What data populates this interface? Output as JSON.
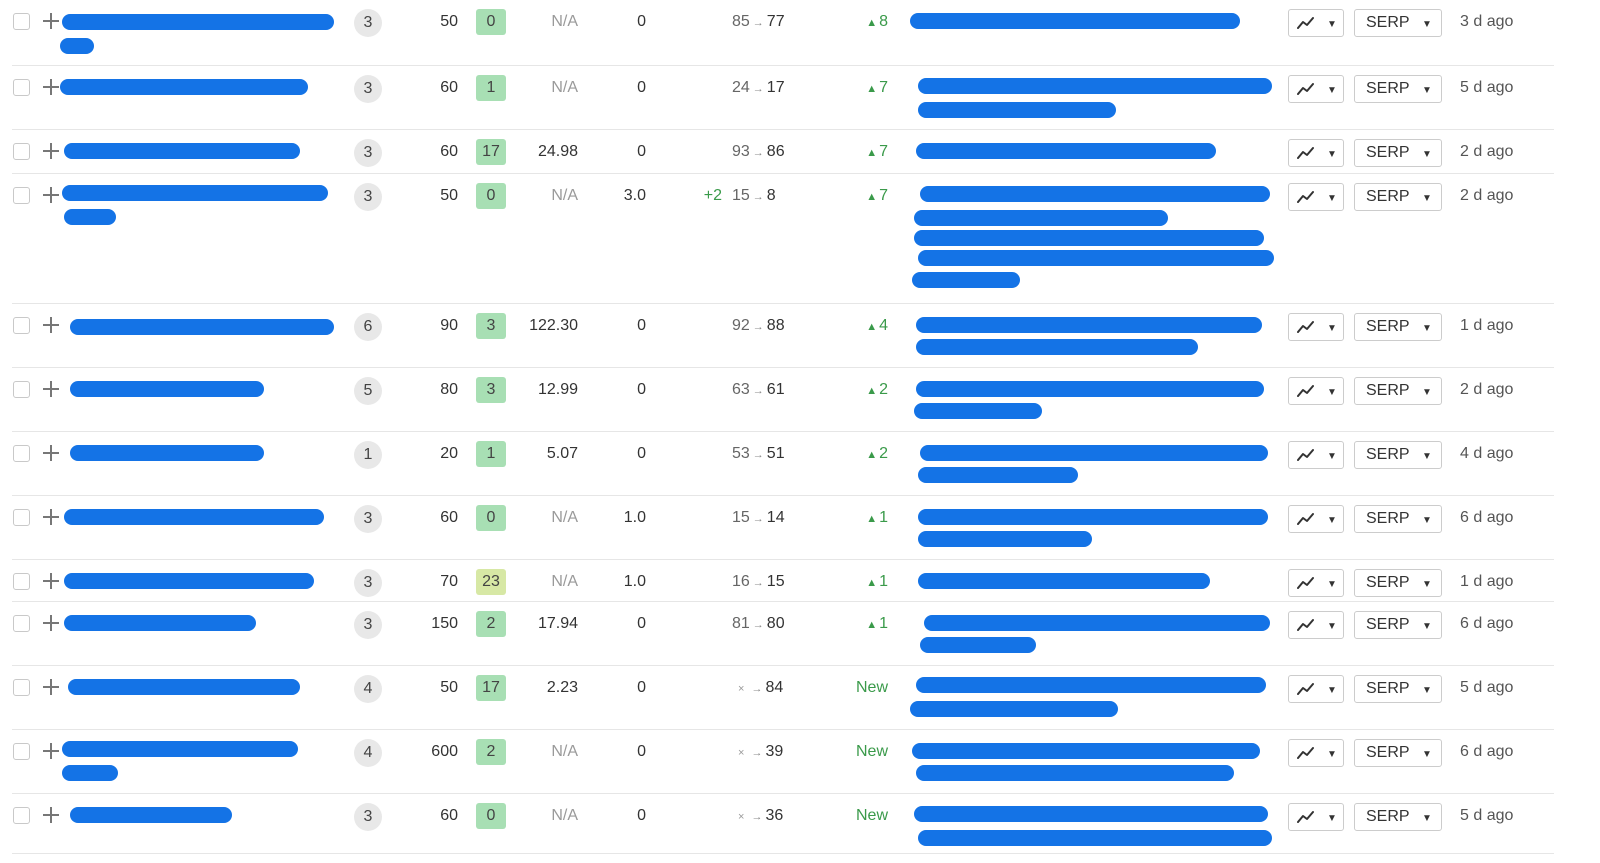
{
  "ui": {
    "serp_label": "SERP",
    "caret": "▼",
    "up_arrow": "▲",
    "arrow": "→",
    "cross": "×",
    "accent": "#1473e6",
    "up_color": "#3a9a4a"
  },
  "rows": [
    {
      "sf": "3",
      "volume": "50",
      "kd": "0",
      "kd_color": "green",
      "cpc": "N/A",
      "traffic": "0",
      "tchange": "",
      "from": "85",
      "to": "77",
      "change": "8",
      "is_new": false,
      "updated": "3 d ago"
    },
    {
      "sf": "3",
      "volume": "60",
      "kd": "1",
      "kd_color": "green",
      "cpc": "N/A",
      "traffic": "0",
      "tchange": "",
      "from": "24",
      "to": "17",
      "change": "7",
      "is_new": false,
      "updated": "5 d ago"
    },
    {
      "sf": "3",
      "volume": "60",
      "kd": "17",
      "kd_color": "green",
      "cpc": "24.98",
      "traffic": "0",
      "tchange": "",
      "from": "93",
      "to": "86",
      "change": "7",
      "is_new": false,
      "updated": "2 d ago"
    },
    {
      "sf": "3",
      "volume": "50",
      "kd": "0",
      "kd_color": "green",
      "cpc": "N/A",
      "traffic": "3.0",
      "tchange": "+2",
      "from": "15",
      "to": "8",
      "change": "7",
      "is_new": false,
      "updated": "2 d ago"
    },
    {
      "sf": "6",
      "volume": "90",
      "kd": "3",
      "kd_color": "green",
      "cpc": "122.30",
      "traffic": "0",
      "tchange": "",
      "from": "92",
      "to": "88",
      "change": "4",
      "is_new": false,
      "updated": "1 d ago"
    },
    {
      "sf": "5",
      "volume": "80",
      "kd": "3",
      "kd_color": "green",
      "cpc": "12.99",
      "traffic": "0",
      "tchange": "",
      "from": "63",
      "to": "61",
      "change": "2",
      "is_new": false,
      "updated": "2 d ago"
    },
    {
      "sf": "1",
      "volume": "20",
      "kd": "1",
      "kd_color": "green",
      "cpc": "5.07",
      "traffic": "0",
      "tchange": "",
      "from": "53",
      "to": "51",
      "change": "2",
      "is_new": false,
      "updated": "4 d ago"
    },
    {
      "sf": "3",
      "volume": "60",
      "kd": "0",
      "kd_color": "green",
      "cpc": "N/A",
      "traffic": "1.0",
      "tchange": "",
      "from": "15",
      "to": "14",
      "change": "1",
      "is_new": false,
      "updated": "6 d ago"
    },
    {
      "sf": "3",
      "volume": "70",
      "kd": "23",
      "kd_color": "yellow",
      "cpc": "N/A",
      "traffic": "1.0",
      "tchange": "",
      "from": "16",
      "to": "15",
      "change": "1",
      "is_new": false,
      "updated": "1 d ago"
    },
    {
      "sf": "3",
      "volume": "150",
      "kd": "2",
      "kd_color": "green",
      "cpc": "17.94",
      "traffic": "0",
      "tchange": "",
      "from": "81",
      "to": "80",
      "change": "1",
      "is_new": false,
      "updated": "6 d ago"
    },
    {
      "sf": "4",
      "volume": "50",
      "kd": "17",
      "kd_color": "green",
      "cpc": "2.23",
      "traffic": "0",
      "tchange": "",
      "from": "",
      "to": "84",
      "change": "New",
      "is_new": true,
      "updated": "5 d ago"
    },
    {
      "sf": "4",
      "volume": "600",
      "kd": "2",
      "kd_color": "green",
      "cpc": "N/A",
      "traffic": "0",
      "tchange": "",
      "from": "",
      "to": "39",
      "change": "New",
      "is_new": true,
      "updated": "6 d ago"
    },
    {
      "sf": "3",
      "volume": "60",
      "kd": "0",
      "kd_color": "green",
      "cpc": "N/A",
      "traffic": "0",
      "tchange": "",
      "from": "",
      "to": "36",
      "change": "New",
      "is_new": true,
      "updated": "5 d ago"
    }
  ]
}
